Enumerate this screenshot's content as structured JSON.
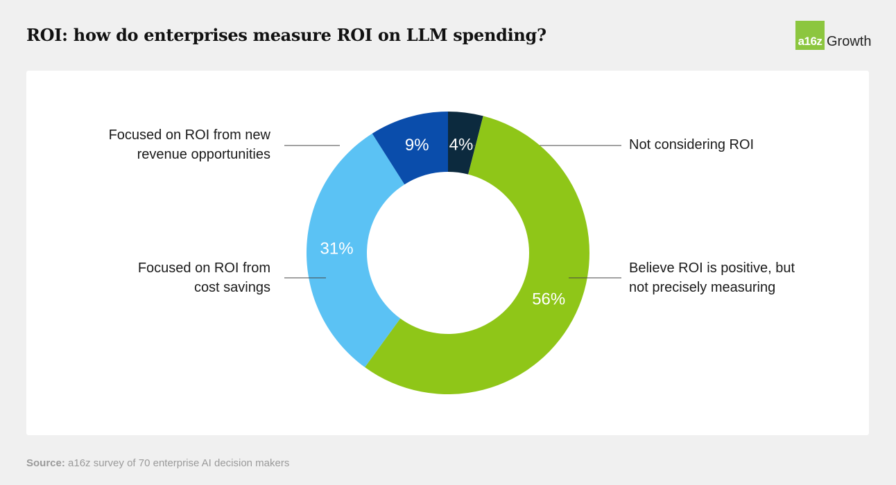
{
  "chart_data": {
    "type": "pie",
    "title": "ROI: how do enterprises measure ROI on LLM spending?",
    "slices": [
      {
        "label": "Not considering ROI",
        "value": 4,
        "display": "4%",
        "color": "#0c2a3e",
        "label_color": "#ffffff"
      },
      {
        "label": "Believe ROI is positive, but not precisely measuring",
        "value": 56,
        "display": "56%",
        "color": "#8fc618",
        "label_color": "#ffffff"
      },
      {
        "label": "Focused on ROI from cost savings",
        "value": 31,
        "display": "31%",
        "color": "#5bc2f4",
        "label_color": "#ffffff"
      },
      {
        "label": "Focused on ROI from new revenue opportunities",
        "value": 9,
        "display": "9%",
        "color": "#0a4dab",
        "label_color": "#ffffff"
      }
    ],
    "annotations": [
      {
        "lines": [
          "Not considering ROI"
        ]
      },
      {
        "lines": [
          "Believe ROI is positive, but",
          "not precisely measuring"
        ]
      },
      {
        "lines": [
          "Focused on ROI from",
          "cost savings"
        ]
      },
      {
        "lines": [
          "Focused on ROI from new",
          "revenue opportunities"
        ]
      }
    ]
  },
  "logo": {
    "mark": "a16z",
    "word": "Growth",
    "color": "#8cc63f"
  },
  "source": {
    "label": "Source:",
    "text": " a16z survey of 70 enterprise AI decision makers"
  }
}
